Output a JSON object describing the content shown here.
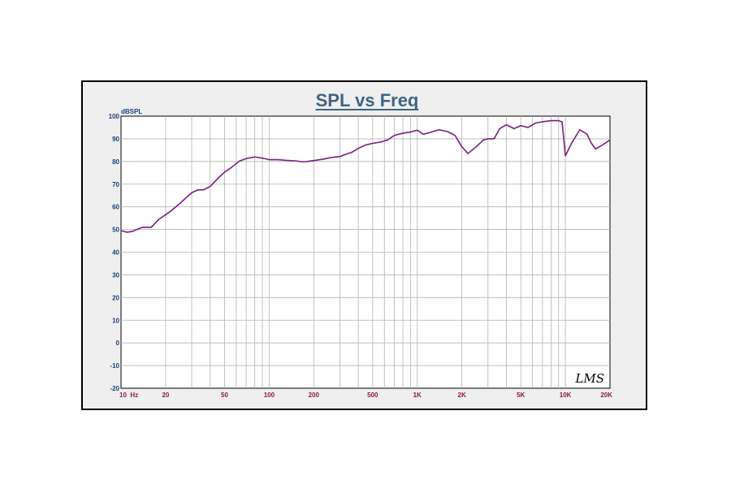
{
  "chart_data": {
    "type": "line",
    "title": "SPL vs Freq",
    "ylabel": "dBSPL",
    "xlabel": "",
    "x_scale": "log",
    "xlim": [
      10,
      20000
    ],
    "ylim": [
      -20,
      100
    ],
    "grid": true,
    "legend": "none",
    "x_ticks": [
      {
        "value": 10,
        "label": "10  Hz"
      },
      {
        "value": 20,
        "label": "20"
      },
      {
        "value": 50,
        "label": "50"
      },
      {
        "value": 100,
        "label": "100"
      },
      {
        "value": 200,
        "label": "200"
      },
      {
        "value": 500,
        "label": "500"
      },
      {
        "value": 1000,
        "label": "1K"
      },
      {
        "value": 2000,
        "label": "2K"
      },
      {
        "value": 5000,
        "label": "5K"
      },
      {
        "value": 10000,
        "label": "10K"
      },
      {
        "value": 20000,
        "label": "20K"
      }
    ],
    "y_ticks": [
      100,
      90,
      80,
      70,
      60,
      50,
      40,
      30,
      20,
      10,
      0,
      -10,
      -20
    ],
    "series": [
      {
        "color": "#7a1f7a",
        "x": [
          10,
          11,
          12,
          13,
          14,
          15,
          16,
          18,
          20,
          22,
          25,
          28,
          30,
          33,
          36,
          40,
          45,
          50,
          56,
          63,
          70,
          80,
          90,
          100,
          115,
          130,
          150,
          170,
          200,
          230,
          260,
          300,
          330,
          360,
          400,
          450,
          500,
          560,
          630,
          700,
          800,
          900,
          1000,
          1100,
          1250,
          1400,
          1600,
          1800,
          2000,
          2200,
          2500,
          2800,
          3000,
          3300,
          3600,
          4000,
          4500,
          5000,
          5600,
          6300,
          7000,
          8000,
          9000,
          9500,
          10000,
          11000,
          12500,
          14000,
          15000,
          16000,
          18000,
          20000
        ],
        "y": [
          49.5,
          48.8,
          49.2,
          50.2,
          51.0,
          51.0,
          51.0,
          54.5,
          56.5,
          58.5,
          61.5,
          64.5,
          66.2,
          67.5,
          67.5,
          69.0,
          72.5,
          75.3,
          77.5,
          80.2,
          81.3,
          82.0,
          81.5,
          80.8,
          80.8,
          80.5,
          80.3,
          79.8,
          80.4,
          81.0,
          81.7,
          82.2,
          83.2,
          84.0,
          85.8,
          87.3,
          88.0,
          88.5,
          89.5,
          91.5,
          92.5,
          93.0,
          93.8,
          92.0,
          93.0,
          94.0,
          93.2,
          91.5,
          86.5,
          83.5,
          86.5,
          89.5,
          90.0,
          90.0,
          94.5,
          96.2,
          94.5,
          95.8,
          95.0,
          97.0,
          97.5,
          98.0,
          98.0,
          97.5,
          82.5,
          88.0,
          94.0,
          92.0,
          88.0,
          85.5,
          87.5,
          89.5
        ]
      }
    ],
    "annotation": "LMS"
  }
}
